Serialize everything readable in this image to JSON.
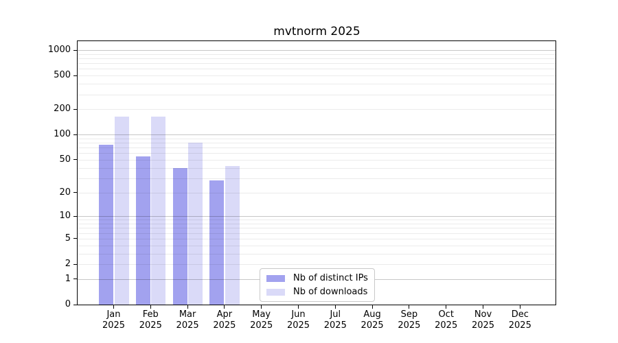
{
  "chart_data": {
    "type": "bar",
    "title": "mvtnorm 2025",
    "year_label": "2025",
    "categories": [
      "Jan",
      "Feb",
      "Mar",
      "Apr",
      "May",
      "Jun",
      "Jul",
      "Aug",
      "Sep",
      "Oct",
      "Nov",
      "Dec"
    ],
    "series": [
      {
        "key": "distinct-ips",
        "name": "Nb of distinct IPs",
        "color": "#a2a2ef",
        "values": [
          75,
          55,
          40,
          28,
          0,
          0,
          0,
          0,
          0,
          0,
          0,
          0
        ]
      },
      {
        "key": "downloads",
        "name": "Nb of downloads",
        "color": "#dadaf8",
        "values": [
          165,
          165,
          80,
          42,
          0,
          0,
          0,
          0,
          0,
          0,
          0,
          0
        ]
      }
    ],
    "xlabel": "",
    "ylabel": "",
    "yscale": "log1p",
    "ylim": [
      0,
      1290
    ],
    "yticks": [
      0,
      1,
      2,
      5,
      10,
      20,
      50,
      100,
      200,
      500,
      1000
    ],
    "grid": {
      "major_values": [
        1,
        10,
        100,
        1000
      ],
      "minor_values": [
        2,
        3,
        4,
        5,
        6,
        7,
        8,
        9,
        20,
        30,
        40,
        50,
        60,
        70,
        80,
        90,
        200,
        300,
        400,
        500,
        600,
        700,
        800,
        900
      ],
      "major_color": "rgba(0,0,0,0.22)",
      "minor_color": "rgba(0,0,0,0.08)",
      "drawn_over_bars": true
    },
    "legend": {
      "position": "lower-center-left-of-middle"
    },
    "colors": {
      "spine": "#000000",
      "tick_text": "#000000",
      "title_text": "#000000",
      "background": "#ffffff",
      "legend_border": "#c8c8c8"
    }
  }
}
